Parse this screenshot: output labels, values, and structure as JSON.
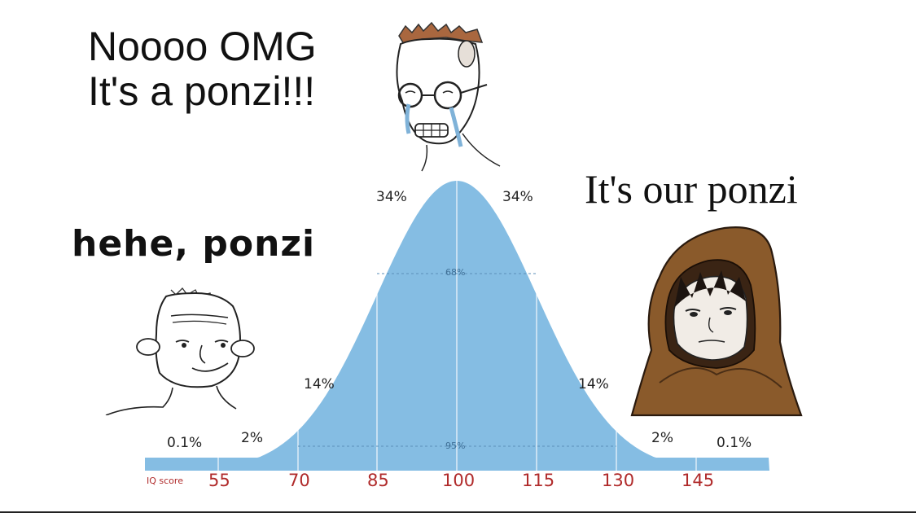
{
  "captions": {
    "top": "Noooo OMG\nIt's a ponzi!!!",
    "left": "hehe, ponzi",
    "right": "It's our ponzi"
  },
  "curve": {
    "fill_color": "#85bde3",
    "band_percent_labels": {
      "far_left": "0.1%",
      "left_2": "2%",
      "left_14": "14%",
      "left_34": "34%",
      "right_34": "34%",
      "right_14": "14%",
      "right_2": "2%",
      "far_right": "0.1%"
    },
    "inner_labels": {
      "sd1": "68%",
      "sd2": "95%"
    },
    "axis_label": "IQ score",
    "ticks": [
      "55",
      "70",
      "85",
      "100",
      "115",
      "130",
      "145"
    ]
  },
  "characters": [
    {
      "name": "crying-glasses-wojak"
    },
    {
      "name": "smug-wojak"
    },
    {
      "name": "hooded-monk"
    }
  ]
}
